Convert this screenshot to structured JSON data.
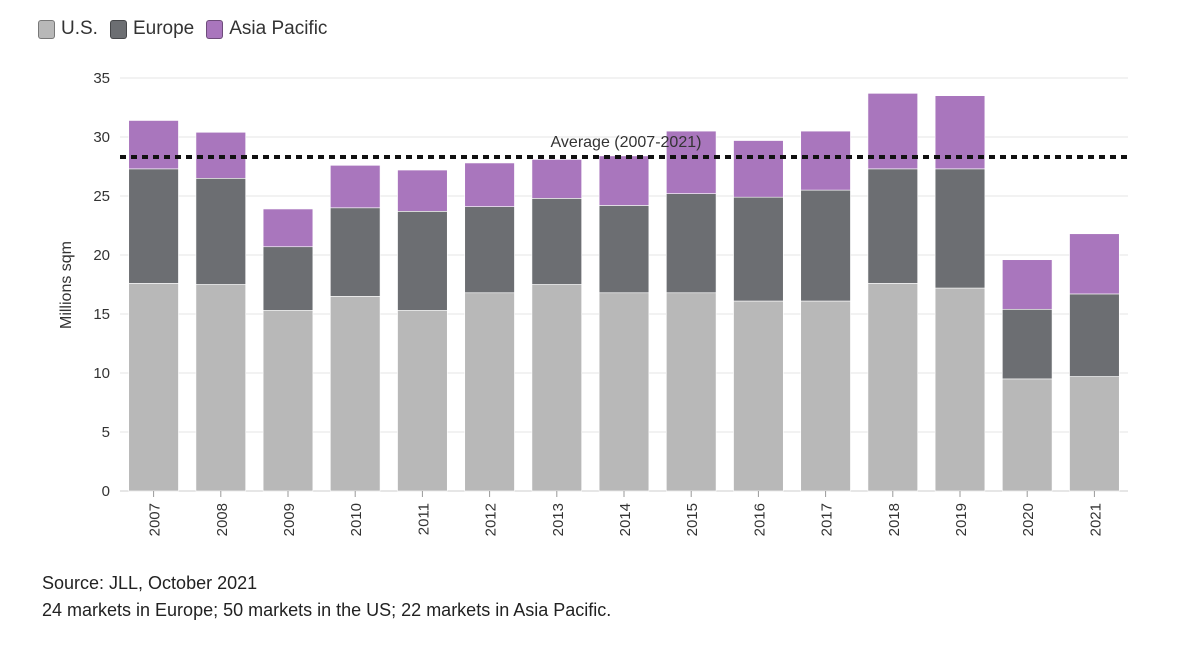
{
  "legend": {
    "items": [
      {
        "label": "U.S.",
        "color": "#b8b8b8"
      },
      {
        "label": "Europe",
        "color": "#6c6e72"
      },
      {
        "label": "Asia Pacific",
        "color": "#a976bd"
      }
    ]
  },
  "footer": {
    "source": "Source: JLL, October 2021",
    "note": "24 markets in Europe; 50 markets in the US; 22 markets in Asia Pacific."
  },
  "chart_data": {
    "type": "bar",
    "stacked": true,
    "title": "",
    "xlabel": "",
    "ylabel": "Millions sqm",
    "ylim": [
      0,
      35
    ],
    "yticks": [
      0,
      5,
      10,
      15,
      20,
      25,
      30,
      35
    ],
    "grid": true,
    "legend_position": "top-left",
    "categories": [
      "2007",
      "2008",
      "2009",
      "2010",
      "2011",
      "2012",
      "2013",
      "2014",
      "2015",
      "2016",
      "2017",
      "2018",
      "2019",
      "2020",
      "2021"
    ],
    "series": [
      {
        "name": "U.S.",
        "color": "#b8b8b8",
        "values": [
          17.6,
          17.5,
          15.3,
          16.5,
          15.3,
          16.8,
          17.5,
          16.8,
          16.8,
          16.1,
          16.1,
          17.6,
          17.2,
          9.5,
          9.7
        ]
      },
      {
        "name": "Europe",
        "color": "#6c6e72",
        "values": [
          9.7,
          9.0,
          5.4,
          7.5,
          8.4,
          7.3,
          7.3,
          7.4,
          8.4,
          8.8,
          9.4,
          9.7,
          10.1,
          5.9,
          7.0
        ]
      },
      {
        "name": "Asia Pacific",
        "color": "#a976bd",
        "values": [
          4.1,
          3.9,
          3.2,
          3.6,
          3.5,
          3.7,
          3.3,
          4.2,
          5.3,
          4.8,
          5.0,
          6.4,
          6.2,
          4.2,
          5.1
        ]
      }
    ],
    "reference_line": {
      "label": "Average (2007-2021)",
      "value": 28.3,
      "style": "dotted"
    }
  }
}
